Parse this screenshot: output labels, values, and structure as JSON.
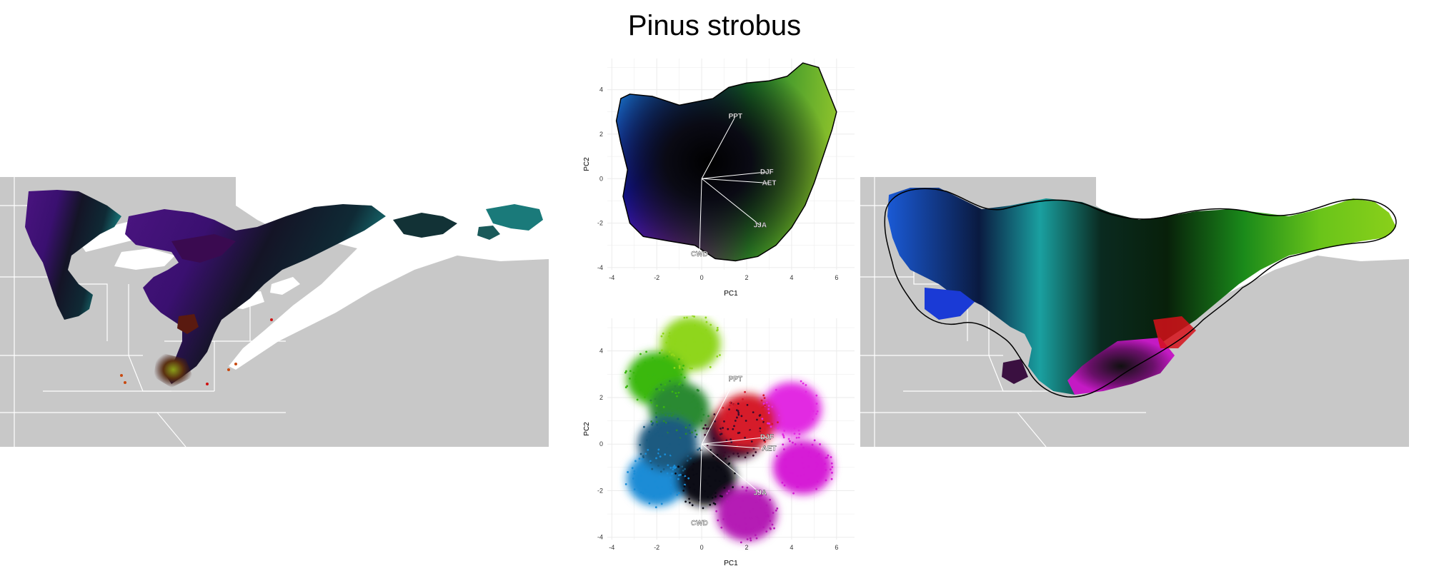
{
  "title": "Pinus strobus",
  "colors": {
    "background": "#ffffff",
    "land": "#c8c8c8",
    "water": "#ffffff",
    "boundary": "#ffffff",
    "grid": "#ebebeb",
    "loading_line": "#ffffff",
    "hull": "#000000"
  },
  "maps": [
    {
      "name": "observed-climate-map",
      "palette": "dark purple / teal / red"
    },
    {
      "name": "mapped-niche-map",
      "palette": "blue / cyan / green / black / magenta"
    }
  ],
  "chart_data": [
    {
      "type": "scatter",
      "panel": "pca-hull-colormap",
      "xlabel": "PC1",
      "ylabel": "PC2",
      "xlim": [
        -4.2,
        6.8
      ],
      "ylim": [
        -4.1,
        5.4
      ],
      "xticks": [
        "-4",
        "-2",
        "0",
        "2",
        "4",
        "6"
      ],
      "yticks": [
        "-4",
        "-2",
        "0",
        "2",
        "4"
      ],
      "grid": true,
      "loadings": [
        {
          "label": "PPT",
          "x": 1.5,
          "y": 2.8
        },
        {
          "label": "DJF",
          "x": 2.9,
          "y": 0.3
        },
        {
          "label": "AET",
          "x": 3.0,
          "y": -0.2
        },
        {
          "label": "JJA",
          "x": 2.6,
          "y": -2.1
        },
        {
          "label": "CWD",
          "x": -0.1,
          "y": -3.4
        }
      ]
    },
    {
      "type": "scatter",
      "panel": "pca-points",
      "xlabel": "PC1",
      "ylabel": "PC2",
      "xlim": [
        -4.2,
        6.8
      ],
      "ylim": [
        -4.1,
        5.4
      ],
      "xticks": [
        "-4",
        "-2",
        "0",
        "2",
        "4",
        "6"
      ],
      "yticks": [
        "-4",
        "-2",
        "0",
        "2",
        "4"
      ],
      "grid": true,
      "loadings": [
        {
          "label": "PPT",
          "x": 1.5,
          "y": 2.8
        },
        {
          "label": "DJF",
          "x": 2.9,
          "y": 0.3
        },
        {
          "label": "AET",
          "x": 3.0,
          "y": -0.2
        },
        {
          "label": "JJA",
          "x": 2.6,
          "y": -2.1
        },
        {
          "label": "CWD",
          "x": -0.1,
          "y": -3.4
        }
      ],
      "clusters": [
        {
          "x": -0.5,
          "y": 4.3,
          "color": "#8fd61a"
        },
        {
          "x": -2.0,
          "y": 2.8,
          "color": "#3ab80f"
        },
        {
          "x": -1.0,
          "y": 1.5,
          "color": "#2a8a30"
        },
        {
          "x": -2.0,
          "y": -1.5,
          "color": "#1a8cd6"
        },
        {
          "x": -1.5,
          "y": 0.0,
          "color": "#1a5a80"
        },
        {
          "x": 0.2,
          "y": -1.5,
          "color": "#0a0a14"
        },
        {
          "x": 1.5,
          "y": 0.5,
          "color": "#3a0a2a"
        },
        {
          "x": 2.0,
          "y": -3.0,
          "color": "#b51ab5"
        },
        {
          "x": 4.0,
          "y": 1.5,
          "color": "#e22ae2"
        },
        {
          "x": 4.5,
          "y": -1.0,
          "color": "#d61ad6"
        },
        {
          "x": 2.0,
          "y": 1.0,
          "color": "#d61a2a"
        }
      ]
    }
  ]
}
